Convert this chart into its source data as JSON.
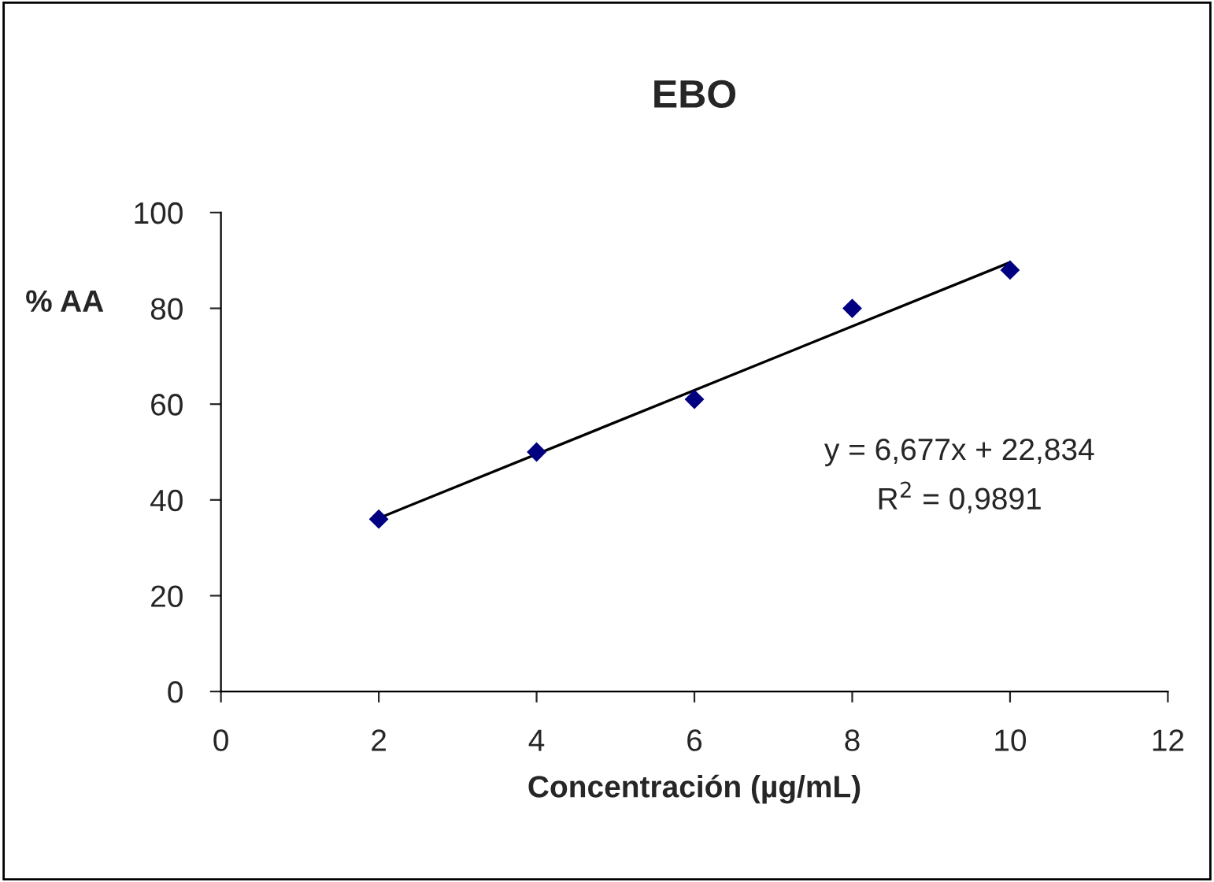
{
  "chart_data": {
    "type": "scatter",
    "title": "EBO",
    "xlabel": "Concentración (µg/mL)",
    "ylabel": "% AA",
    "x": [
      2,
      4,
      6,
      8,
      10
    ],
    "series": [
      {
        "color": "#000080",
        "marker": "diamond",
        "values": [
          36,
          50,
          61,
          80,
          88
        ]
      },
      {
        "type": "line",
        "color": "#000000",
        "marker": "none",
        "x": [
          2,
          10
        ],
        "values": [
          36.2,
          89.6
        ]
      }
    ],
    "annotations": [
      "y = 6,677x + 22,834",
      "R$^{2}$ = 0,9891"
    ],
    "xlim": [
      0,
      12
    ],
    "xticks": [
      0,
      2,
      4,
      6,
      8,
      10,
      12
    ],
    "ylim": [
      0,
      100
    ],
    "yticks": [
      0,
      20,
      40,
      60,
      80,
      100
    ],
    "grid": false,
    "legend": false
  }
}
